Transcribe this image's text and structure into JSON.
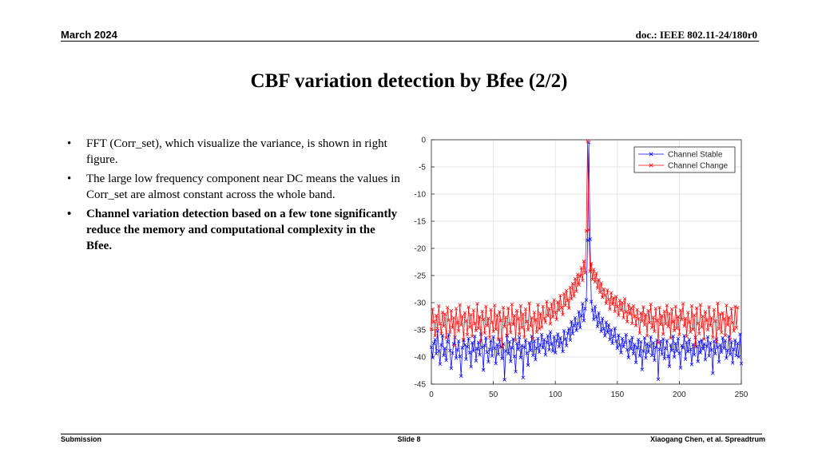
{
  "header": {
    "date": "March 2024",
    "doc_id": "doc.: IEEE 802.11-24/180r0"
  },
  "title": "CBF variation detection by Bfee (2/2)",
  "bullets": [
    "FFT (Corr_set), which visualize the variance, is shown in right figure.",
    "The large low frequency component near DC means the values in Corr_set are almost constant across the whole band.",
    "Channel variation detection based on a few tone significantly reduce the memory and computational complexity in the Bfee."
  ],
  "bullet_symbol": "•",
  "footer": {
    "left": "Submission",
    "center": "Slide 8",
    "right": "Xiaogang Chen, et al. Spreadtrum"
  },
  "chart_data": {
    "type": "line",
    "title": "",
    "xlabel": "",
    "ylabel": "",
    "xlim": [
      0,
      250
    ],
    "ylim": [
      -45,
      0
    ],
    "grid": true,
    "legend_position": "top-right",
    "x_ticks": [
      "0",
      "50",
      "100",
      "150",
      "200",
      "250"
    ],
    "y_ticks": [
      "0",
      "-5",
      "-10",
      "-15",
      "-20",
      "-25",
      "-30",
      "-35",
      "-40",
      "-45"
    ],
    "series": [
      {
        "name": "Channel Stable",
        "color": "#0000ff",
        "marker": "x",
        "x_start": 0,
        "values": [
          -38.2,
          -40.1,
          -37.5,
          -36.8,
          -39.4,
          -35.2,
          -38.9,
          -41.3,
          -37.8,
          -36.1,
          -39.7,
          -38.4,
          -40.6,
          -37.2,
          -35.9,
          -38.8,
          -42.1,
          -39.3,
          -37.6,
          -36.4,
          -40.2,
          -38.7,
          -37.1,
          -39.9,
          -43.5,
          -38.3,
          -36.9,
          -37.8,
          -40.4,
          -38.1,
          -36.6,
          -39.2,
          -41.8,
          -37.4,
          -38.9,
          -36.2,
          -40.7,
          -38.5,
          -37.3,
          -39.6,
          -35.8,
          -38.2,
          -42.4,
          -37.9,
          -36.5,
          -39.1,
          -40.9,
          -38.6,
          -37.0,
          -39.8,
          -36.3,
          -38.4,
          -41.2,
          -37.7,
          -39.5,
          -36.8,
          -38.1,
          -40.3,
          -37.6,
          -44.2,
          -38.9,
          -36.1,
          -39.4,
          -37.2,
          -40.8,
          -38.3,
          -36.7,
          -39.9,
          -42.7,
          -37.5,
          -38.6,
          -36.4,
          -40.1,
          -37.9,
          -43.8,
          -38.2,
          -36.9,
          -39.3,
          -41.5,
          -37.4,
          -38.8,
          -36.2,
          -39.7,
          -37.1,
          -40.5,
          -38.4,
          -36.6,
          -39.1,
          -37.8,
          -35.9,
          -38.3,
          -36.8,
          -39.6,
          -37.3,
          -36.1,
          -38.7,
          -35.4,
          -37.6,
          -38.9,
          -36.3,
          -39.2,
          -37.0,
          -35.8,
          -38.1,
          -36.5,
          -37.4,
          -39.0,
          -35.2,
          -36.7,
          -37.9,
          -35.6,
          -34.8,
          -36.9,
          -33.5,
          -35.7,
          -34.2,
          -32.8,
          -35.1,
          -33.9,
          -31.7,
          -34.6,
          -32.4,
          -30.2,
          -33.3,
          -31.1,
          -29.5,
          -18.5,
          -0.5,
          -18.3,
          -29.8,
          -31.4,
          -33.1,
          -30.7,
          -32.6,
          -34.4,
          -31.9,
          -33.7,
          -35.3,
          -32.9,
          -34.8,
          -36.1,
          -33.6,
          -35.5,
          -34.1,
          -36.8,
          -35.0,
          -37.5,
          -36.2,
          -34.7,
          -37.1,
          -38.4,
          -36.0,
          -37.8,
          -39.2,
          -36.6,
          -38.1,
          -37.3,
          -35.9,
          -38.7,
          -40.1,
          -37.0,
          -38.5,
          -36.4,
          -39.4,
          -37.7,
          -41.0,
          -38.3,
          -36.8,
          -39.8,
          -37.2,
          -42.3,
          -38.9,
          -36.5,
          -40.2,
          -37.6,
          -39.1,
          -38.0,
          -36.3,
          -39.7,
          -37.4,
          -40.6,
          -38.2,
          -36.9,
          -44.1,
          -38.6,
          -37.1,
          -39.5,
          -36.7,
          -40.3,
          -38.4,
          -37.0,
          -39.9,
          -41.7,
          -37.8,
          -38.8,
          -36.2,
          -40.0,
          -37.5,
          -38.9,
          -36.6,
          -39.3,
          -42.0,
          -37.9,
          -38.3,
          -36.1,
          -40.4,
          -37.3,
          -39.0,
          -36.8,
          -38.6,
          -41.4,
          -37.7,
          -39.6,
          -36.4,
          -38.1,
          -40.8,
          -37.2,
          -39.2,
          -36.9,
          -38.5,
          -37.6,
          -40.5,
          -38.0,
          -36.3,
          -39.8,
          -37.4,
          -38.7,
          -43.0,
          -37.1,
          -39.4,
          -36.7,
          -38.2,
          -40.9,
          -37.8,
          -39.1,
          -36.5,
          -38.4,
          -37.0,
          -40.2,
          -38.8,
          -36.2,
          -39.5,
          -37.3,
          -41.1,
          -38.6,
          -36.9,
          -39.7,
          -37.5,
          -40.0,
          -35.8,
          -41.2
        ]
      },
      {
        "name": "Channel Change",
        "color": "#ff0000",
        "marker": "x",
        "x_start": 0,
        "values": [
          -34.9,
          -31.2,
          -33.5,
          -36.1,
          -32.4,
          -34.8,
          -30.6,
          -33.9,
          -35.7,
          -31.8,
          -34.3,
          -32.1,
          -36.5,
          -30.9,
          -33.2,
          -35.4,
          -31.5,
          -34.6,
          -32.8,
          -37.9,
          -31.1,
          -33.7,
          -35.2,
          -30.4,
          -34.1,
          -32.5,
          -36.8,
          -31.9,
          -33.4,
          -35.9,
          -30.8,
          -34.5,
          -32.2,
          -36.2,
          -31.4,
          -33.8,
          -35.1,
          -30.2,
          -34.7,
          -32.6,
          -37.1,
          -31.6,
          -33.1,
          -35.6,
          -30.7,
          -34.2,
          -32.9,
          -36.4,
          -31.3,
          -33.6,
          -35.3,
          -30.5,
          -34.9,
          -32.3,
          -36.7,
          -31.7,
          -33.3,
          -38.2,
          -30.9,
          -34.4,
          -32.7,
          -36.0,
          -31.0,
          -33.9,
          -35.5,
          -30.3,
          -34.0,
          -32.4,
          -36.9,
          -31.5,
          -33.0,
          -35.8,
          -30.6,
          -34.6,
          -32.1,
          -36.3,
          -31.2,
          -33.5,
          -35.0,
          -30.1,
          -34.3,
          -32.8,
          -36.6,
          -31.8,
          -33.2,
          -35.4,
          -30.4,
          -34.8,
          -32.0,
          -34.5,
          -30.7,
          -32.9,
          -33.6,
          -29.8,
          -32.4,
          -31.1,
          -33.9,
          -30.2,
          -32.6,
          -29.5,
          -31.8,
          -33.1,
          -29.9,
          -31.4,
          -28.7,
          -30.9,
          -32.2,
          -28.4,
          -30.5,
          -27.8,
          -29.6,
          -31.0,
          -27.2,
          -29.3,
          -26.5,
          -28.8,
          -25.6,
          -27.9,
          -24.8,
          -26.7,
          -25.1,
          -23.6,
          -25.9,
          -22.4,
          -24.5,
          -16.8,
          -0.3,
          -16.6,
          -24.2,
          -22.8,
          -25.7,
          -23.9,
          -26.2,
          -24.6,
          -27.3,
          -25.8,
          -28.1,
          -26.4,
          -29.0,
          -27.5,
          -28.6,
          -30.1,
          -27.7,
          -29.4,
          -31.2,
          -28.2,
          -30.3,
          -29.1,
          -31.6,
          -28.9,
          -30.7,
          -32.3,
          -29.6,
          -31.4,
          -30.0,
          -32.8,
          -29.3,
          -31.7,
          -33.5,
          -30.4,
          -32.1,
          -31.0,
          -33.8,
          -30.6,
          -32.5,
          -34.2,
          -31.3,
          -33.0,
          -35.6,
          -31.9,
          -33.4,
          -30.8,
          -34.1,
          -32.2,
          -36.1,
          -31.5,
          -33.7,
          -30.3,
          -34.6,
          -32.7,
          -35.3,
          -31.1,
          -33.3,
          -37.4,
          -30.9,
          -34.0,
          -32.4,
          -35.8,
          -31.6,
          -33.9,
          -30.5,
          -34.4,
          -32.0,
          -36.5,
          -31.2,
          -33.5,
          -35.1,
          -30.7,
          -34.7,
          -32.6,
          -35.9,
          -31.4,
          -33.1,
          -30.2,
          -34.3,
          -32.9,
          -36.2,
          -31.8,
          -33.6,
          -35.4,
          -30.6,
          -34.9,
          -32.3,
          -38.0,
          -31.0,
          -33.8,
          -35.7,
          -30.4,
          -34.5,
          -32.5,
          -36.7,
          -31.7,
          -33.2,
          -35.0,
          -30.8,
          -34.2,
          -32.8,
          -36.4,
          -31.3,
          -33.4,
          -37.2,
          -30.1,
          -34.8,
          -32.1,
          -35.5,
          -31.9,
          -33.0,
          -36.0,
          -30.5,
          -34.1,
          -32.7,
          -36.8,
          -31.1,
          -33.7,
          -35.2,
          -30.7,
          -34.6,
          -30.9
        ]
      }
    ]
  }
}
